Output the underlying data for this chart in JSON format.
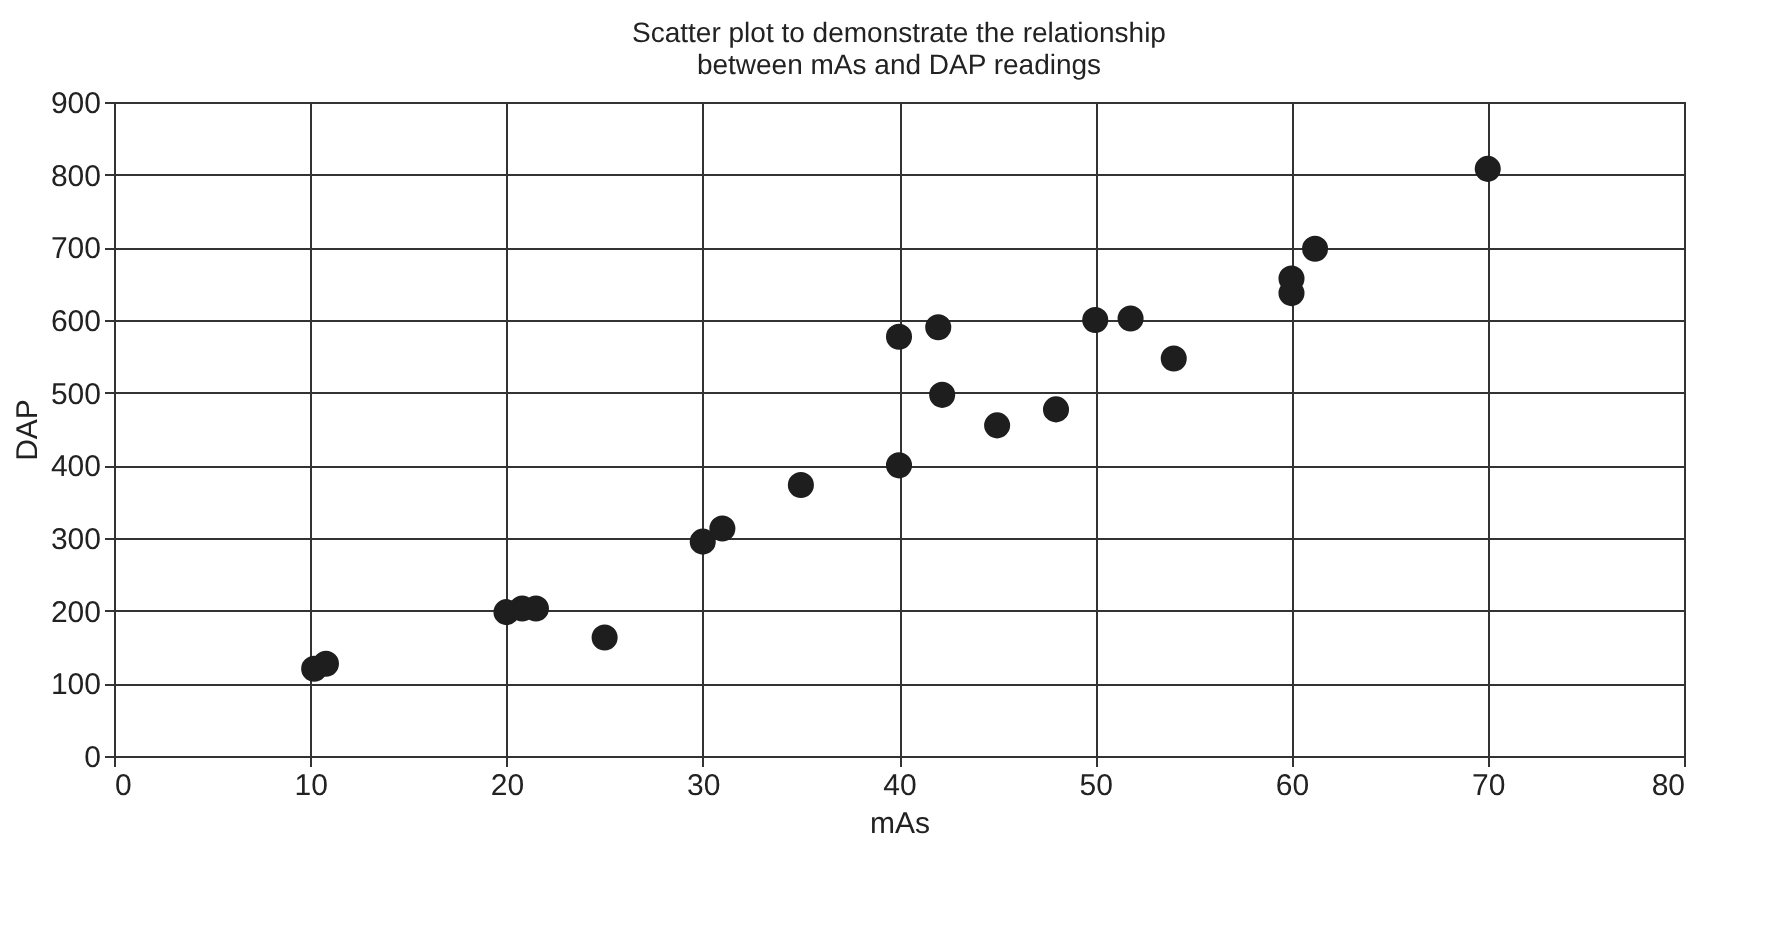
{
  "chart_data": {
    "type": "scatter",
    "title": [
      "Scatter plot to demonstrate the relationship",
      "between mAs and DAP readings"
    ],
    "xlabel": "mAs",
    "ylabel": "DAP",
    "x": [
      10.2,
      10.8,
      20,
      20.8,
      21.5,
      25,
      30,
      31,
      35,
      40,
      40,
      42,
      42.2,
      45,
      48,
      50,
      51.8,
      54,
      60,
      60,
      61.2,
      70
    ],
    "series": [
      {
        "color": "#1e1e1e",
        "values": [
          120,
          127,
          198,
          203,
          203,
          163,
          295,
          313,
          373,
          577,
          400,
          590,
          497,
          455,
          477,
          600,
          602,
          547,
          637,
          657,
          698,
          808
        ]
      }
    ],
    "xlim": [
      0,
      80
    ],
    "xticks": [
      0,
      10,
      20,
      30,
      40,
      50,
      60,
      70,
      80
    ],
    "ylim": [
      0,
      900
    ],
    "yticks": [
      0,
      100,
      200,
      300,
      400,
      500,
      600,
      700,
      800,
      900
    ],
    "grid": true,
    "marker": "circle",
    "legend": false
  }
}
